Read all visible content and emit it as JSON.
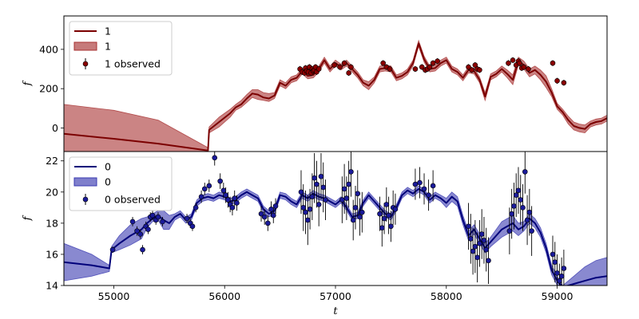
{
  "chart_data": [
    {
      "type": "line",
      "panel": "top",
      "xlabel": "",
      "ylabel": "f",
      "xlim": [
        54550,
        59450
      ],
      "ylim": [
        -120,
        570
      ],
      "xticks": [],
      "yticks": [
        0,
        200,
        400
      ],
      "colors": {
        "line": "#7b0000",
        "band": "#a83232",
        "points": "#8b0000"
      },
      "legend": {
        "placement": "top-left",
        "line_label": "1",
        "band_label": "1",
        "points_label": "1 observed"
      },
      "model": {
        "x": [
          54550,
          55000,
          55400,
          55850,
          55860,
          55950,
          56050,
          56100,
          56150,
          56200,
          56250,
          56300,
          56350,
          56400,
          56450,
          56500,
          56550,
          56600,
          56650,
          56700,
          56750,
          56800,
          56850,
          56900,
          56950,
          57000,
          57050,
          57100,
          57150,
          57200,
          57250,
          57300,
          57350,
          57400,
          57450,
          57500,
          57550,
          57600,
          57650,
          57700,
          57750,
          57800,
          57850,
          57900,
          57950,
          58000,
          58050,
          58100,
          58150,
          58200,
          58250,
          58300,
          58350,
          58400,
          58450,
          58500,
          58550,
          58600,
          58650,
          58700,
          58750,
          58800,
          58850,
          58900,
          58950,
          59000,
          59050,
          59100,
          59150,
          59200,
          59250,
          59300,
          59350,
          59400,
          59450
        ],
        "y": [
          -30,
          -55,
          -80,
          -115,
          -10,
          30,
          75,
          105,
          120,
          150,
          175,
          170,
          155,
          150,
          165,
          230,
          215,
          245,
          255,
          290,
          265,
          270,
          300,
          345,
          300,
          330,
          310,
          330,
          300,
          270,
          230,
          215,
          245,
          300,
          305,
          300,
          255,
          265,
          285,
          330,
          430,
          350,
          300,
          305,
          330,
          345,
          300,
          285,
          255,
          295,
          290,
          245,
          160,
          260,
          275,
          300,
          275,
          245,
          340,
          320,
          280,
          295,
          270,
          235,
          180,
          110,
          80,
          40,
          10,
          0,
          -5,
          20,
          30,
          35,
          50
        ],
        "lower": [
          -150,
          -170,
          -200,
          -130,
          -25,
          5,
          55,
          90,
          105,
          130,
          155,
          145,
          140,
          135,
          150,
          215,
          200,
          230,
          240,
          275,
          250,
          255,
          285,
          330,
          285,
          315,
          295,
          315,
          285,
          255,
          215,
          195,
          230,
          285,
          290,
          285,
          240,
          250,
          270,
          315,
          415,
          335,
          285,
          290,
          315,
          330,
          285,
          270,
          240,
          280,
          275,
          230,
          140,
          245,
          260,
          285,
          255,
          220,
          320,
          300,
          260,
          275,
          245,
          205,
          160,
          95,
          65,
          20,
          -10,
          -20,
          -25,
          5,
          15,
          20,
          35
        ],
        "upper": [
          120,
          90,
          40,
          -100,
          5,
          55,
          95,
          120,
          140,
          170,
          195,
          195,
          180,
          175,
          180,
          245,
          230,
          260,
          270,
          305,
          280,
          285,
          315,
          360,
          315,
          345,
          325,
          345,
          315,
          285,
          245,
          235,
          260,
          315,
          320,
          315,
          270,
          280,
          300,
          345,
          445,
          365,
          315,
          320,
          345,
          360,
          315,
          300,
          270,
          310,
          305,
          260,
          180,
          275,
          290,
          315,
          295,
          270,
          360,
          340,
          300,
          315,
          295,
          265,
          200,
          125,
          95,
          60,
          30,
          20,
          15,
          35,
          45,
          50,
          65
        ]
      },
      "observed": {
        "x": [
          56680,
          56700,
          56720,
          56730,
          56740,
          56755,
          56765,
          56780,
          56790,
          56800,
          56810,
          56820,
          56830,
          56850,
          56990,
          57040,
          57080,
          57120,
          57140,
          57430,
          57460,
          57490,
          57720,
          57780,
          57810,
          57830,
          57850,
          57880,
          57920,
          58200,
          58230,
          58260,
          58280,
          58300,
          58560,
          58600,
          58630,
          58650,
          58660,
          58680,
          58700,
          58740,
          58960,
          59000,
          59060
        ],
        "y": [
          300,
          285,
          280,
          305,
          290,
          285,
          310,
          280,
          300,
          290,
          295,
          310,
          285,
          300,
          320,
          310,
          330,
          280,
          310,
          330,
          310,
          300,
          300,
          310,
          295,
          300,
          310,
          330,
          340,
          310,
          295,
          320,
          300,
          295,
          330,
          345,
          320,
          340,
          330,
          305,
          310,
          300,
          330,
          240,
          230
        ],
        "err": [
          15,
          15,
          15,
          15,
          15,
          15,
          15,
          15,
          15,
          15,
          15,
          15,
          15,
          15,
          15,
          15,
          15,
          15,
          15,
          15,
          15,
          15,
          15,
          15,
          15,
          15,
          15,
          15,
          15,
          15,
          15,
          15,
          15,
          15,
          15,
          15,
          15,
          15,
          15,
          15,
          15,
          15,
          15,
          15,
          15
        ]
      }
    },
    {
      "type": "line",
      "panel": "bottom",
      "xlabel": "t",
      "ylabel": "f",
      "xlim": [
        54550,
        59450
      ],
      "ylim": [
        14,
        22.6
      ],
      "xticks": [
        55000,
        56000,
        57000,
        58000,
        59000
      ],
      "yticks": [
        14,
        16,
        18,
        20,
        22
      ],
      "colors": {
        "line": "#00007a",
        "band": "#3a3ab0",
        "points": "#1a1a9a"
      },
      "legend": {
        "placement": "top-left",
        "line_label": "0",
        "band_label": "0",
        "points_label": "0 observed"
      },
      "model": {
        "x": [
          54550,
          54800,
          54960,
          54980,
          55050,
          55150,
          55250,
          55300,
          55350,
          55400,
          55450,
          55500,
          55550,
          55600,
          55650,
          55700,
          55750,
          55800,
          55850,
          55900,
          55950,
          56000,
          56050,
          56100,
          56150,
          56200,
          56250,
          56300,
          56350,
          56400,
          56450,
          56500,
          56550,
          56600,
          56650,
          56700,
          56750,
          56800,
          56850,
          56900,
          56950,
          57000,
          57050,
          57100,
          57150,
          57200,
          57250,
          57300,
          57350,
          57400,
          57450,
          57500,
          57550,
          57600,
          57650,
          57700,
          57750,
          57800,
          57850,
          57900,
          57950,
          58000,
          58050,
          58100,
          58150,
          58200,
          58250,
          58300,
          58350,
          58400,
          58450,
          58500,
          58550,
          58600,
          58650,
          58700,
          58750,
          58800,
          58850,
          58900,
          58950,
          59000,
          59050,
          59150,
          59250,
          59350,
          59450
        ],
        "y": [
          15.5,
          15.3,
          15.1,
          16.3,
          16.7,
          17.2,
          17.6,
          18.0,
          18.3,
          18.5,
          18.2,
          18.0,
          18.4,
          18.6,
          18.2,
          18.4,
          19.3,
          19.6,
          19.7,
          19.6,
          19.8,
          19.7,
          19.4,
          19.5,
          19.8,
          20.0,
          19.8,
          19.6,
          18.9,
          18.6,
          18.8,
          19.8,
          19.7,
          19.4,
          19.2,
          19.8,
          19.6,
          19.9,
          19.7,
          19.6,
          19.4,
          19.2,
          19.5,
          19.0,
          18.4,
          18.5,
          19.3,
          19.8,
          19.4,
          19.0,
          18.6,
          18.4,
          19.0,
          19.8,
          20.1,
          19.9,
          20.2,
          20.0,
          19.5,
          19.8,
          19.6,
          19.3,
          19.7,
          19.4,
          18.2,
          17.2,
          17.6,
          17.0,
          16.4,
          16.8,
          17.2,
          17.6,
          17.8,
          18.0,
          17.6,
          17.8,
          18.3,
          18.0,
          17.4,
          16.4,
          15.0,
          14.3,
          13.9,
          14.1,
          14.3,
          14.5,
          14.6
        ],
        "lower": [
          14.3,
          14.6,
          14.9,
          16.1,
          16.3,
          16.6,
          17.0,
          17.7,
          18.1,
          18.2,
          17.6,
          17.6,
          18.2,
          18.4,
          18.0,
          18.2,
          19.1,
          19.4,
          19.5,
          19.4,
          19.6,
          19.5,
          19.2,
          19.3,
          19.6,
          19.8,
          19.6,
          19.4,
          18.7,
          18.4,
          18.6,
          19.6,
          19.5,
          19.2,
          19.0,
          19.6,
          19.4,
          19.7,
          19.5,
          19.4,
          19.2,
          19.0,
          19.3,
          18.8,
          18.2,
          18.3,
          19.1,
          19.6,
          19.2,
          18.8,
          18.4,
          18.2,
          18.8,
          19.6,
          19.9,
          19.7,
          20.0,
          19.8,
          19.3,
          19.6,
          19.4,
          19.0,
          19.4,
          19.1,
          17.9,
          16.9,
          17.3,
          16.7,
          16.1,
          16.5,
          16.8,
          17.1,
          17.3,
          17.5,
          17.2,
          17.5,
          18.0,
          17.7,
          17.1,
          16.1,
          14.7,
          14.0,
          13.8,
          13.6,
          13.4,
          13.3,
          13.3
        ],
        "upper": [
          16.7,
          16.0,
          15.3,
          16.5,
          17.2,
          17.9,
          18.3,
          18.4,
          18.6,
          18.8,
          18.8,
          18.5,
          18.6,
          18.8,
          18.4,
          18.6,
          19.5,
          19.8,
          19.9,
          19.8,
          20.0,
          19.9,
          19.6,
          19.7,
          20.0,
          20.2,
          20.0,
          19.8,
          19.1,
          18.8,
          19.0,
          20.0,
          19.9,
          19.6,
          19.4,
          20.0,
          19.8,
          20.1,
          19.9,
          19.8,
          19.6,
          19.4,
          19.7,
          19.2,
          18.6,
          18.7,
          19.5,
          20.0,
          19.6,
          19.2,
          18.8,
          18.6,
          19.2,
          20.0,
          20.3,
          20.1,
          20.4,
          20.2,
          19.7,
          20.0,
          19.8,
          19.6,
          20.0,
          19.7,
          18.5,
          17.5,
          17.9,
          17.3,
          16.7,
          17.1,
          17.6,
          18.1,
          18.3,
          18.5,
          18.0,
          18.1,
          18.6,
          18.3,
          17.7,
          16.7,
          15.3,
          14.6,
          14.0,
          14.6,
          15.2,
          15.6,
          15.8
        ]
      },
      "observed": {
        "x": [
          54990,
          55170,
          55210,
          55240,
          55260,
          55290,
          55310,
          55330,
          55350,
          55380,
          55400,
          55440,
          55660,
          55690,
          55710,
          55740,
          55790,
          55820,
          55860,
          55910,
          55960,
          55990,
          56010,
          56030,
          56050,
          56070,
          56090,
          56110,
          56330,
          56360,
          56390,
          56420,
          56440,
          56460,
          56690,
          56710,
          56730,
          56750,
          56770,
          56790,
          56810,
          56830,
          56850,
          56870,
          56890,
          56910,
          57060,
          57080,
          57100,
          57120,
          57140,
          57160,
          57180,
          57200,
          57220,
          57240,
          57400,
          57420,
          57440,
          57460,
          57480,
          57500,
          57520,
          57540,
          57720,
          57760,
          57800,
          57840,
          57880,
          58200,
          58220,
          58240,
          58260,
          58280,
          58300,
          58320,
          58340,
          58360,
          58380,
          58570,
          58590,
          58610,
          58630,
          58650,
          58670,
          58690,
          58710,
          58730,
          58750,
          58770,
          58960,
          58980,
          59000,
          59020,
          59040,
          59060
        ],
        "y": [
          16.3,
          18.1,
          17.5,
          17.3,
          16.3,
          17.8,
          17.6,
          18.4,
          18.5,
          18.2,
          18.4,
          18.1,
          18.3,
          18.0,
          17.8,
          19.0,
          19.7,
          20.2,
          20.4,
          22.2,
          20.7,
          20.1,
          19.8,
          19.5,
          19.2,
          19.0,
          19.6,
          19.3,
          18.6,
          18.4,
          18.0,
          18.9,
          18.5,
          19.1,
          20.0,
          19.0,
          18.7,
          18.2,
          18.9,
          19.7,
          20.9,
          20.5,
          19.2,
          21.0,
          20.3,
          19.5,
          19.5,
          20.2,
          19.6,
          20.5,
          21.3,
          18.2,
          19.0,
          19.9,
          18.4,
          18.7,
          18.6,
          17.7,
          18.3,
          19.2,
          18.5,
          17.8,
          19.0,
          18.9,
          20.5,
          20.6,
          20.2,
          19.8,
          20.4,
          17.8,
          17.0,
          16.2,
          16.5,
          15.8,
          16.7,
          17.3,
          16.9,
          16.3,
          15.6,
          17.5,
          18.6,
          19.1,
          19.8,
          20.1,
          19.5,
          19.0,
          21.3,
          18.2,
          18.7,
          17.5,
          16.0,
          15.5,
          14.8,
          14.3,
          14.6,
          15.1
        ],
        "err": [
          0.2,
          0.3,
          0.3,
          0.3,
          0.3,
          0.3,
          0.3,
          0.3,
          0.3,
          0.3,
          0.3,
          0.3,
          0.3,
          0.3,
          0.3,
          0.3,
          0.4,
          0.4,
          0.4,
          0.5,
          0.5,
          0.5,
          0.5,
          0.5,
          0.5,
          0.5,
          0.5,
          0.5,
          0.5,
          0.5,
          0.5,
          0.5,
          0.5,
          0.5,
          1.4,
          1.5,
          1.4,
          1.6,
          1.3,
          1.5,
          1.6,
          1.5,
          1.4,
          1.5,
          1.6,
          1.3,
          1.5,
          1.6,
          1.4,
          1.5,
          1.6,
          1.3,
          1.4,
          1.5,
          1.2,
          1.3,
          1.1,
          1.2,
          1.0,
          1.1,
          1.2,
          1.0,
          1.1,
          1.0,
          1.0,
          1.0,
          1.0,
          1.0,
          1.0,
          1.5,
          1.6,
          1.5,
          1.7,
          1.6,
          1.5,
          1.6,
          1.5,
          1.4,
          1.5,
          1.5,
          1.6,
          1.5,
          1.4,
          1.5,
          1.6,
          1.5,
          1.4,
          1.6,
          1.5,
          1.6,
          1.2,
          1.3,
          1.2,
          1.1,
          1.2,
          1.2
        ]
      }
    }
  ]
}
